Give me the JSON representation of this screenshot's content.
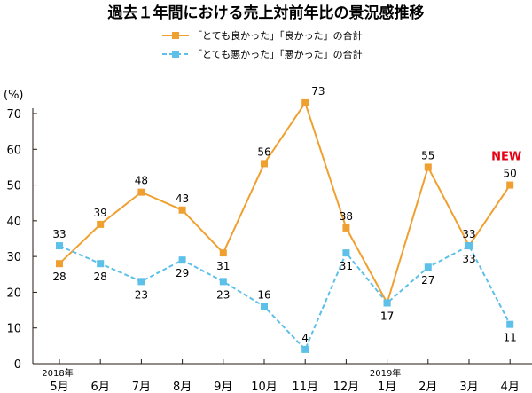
{
  "chart_data": {
    "type": "line",
    "title": "過去１年間における売上対前年比の景況感推移",
    "ylabel": "(%)",
    "ylim": [
      0,
      70
    ],
    "yticks": [
      0,
      10,
      20,
      30,
      40,
      50,
      60,
      70
    ],
    "grid": false,
    "legend_position": "top-center",
    "categories": [
      "5月",
      "6月",
      "7月",
      "8月",
      "9月",
      "10月",
      "11月",
      "12月",
      "1月",
      "2月",
      "3月",
      "4月"
    ],
    "year_labels": [
      {
        "category_index": 0,
        "text": "2018年"
      },
      {
        "category_index": 8,
        "text": "2019年"
      }
    ],
    "series": [
      {
        "name": "「とても良かった」「良かった」の合計",
        "values": [
          28,
          39,
          48,
          43,
          31,
          56,
          73,
          38,
          17,
          55,
          33,
          50
        ],
        "color": "#F0A030",
        "dash": "solid",
        "label_side": [
          "below",
          "above",
          "above",
          "above",
          "below",
          "above",
          "right",
          "above",
          "below",
          "above",
          "below",
          "above"
        ]
      },
      {
        "name": "「とても悪かった」「悪かった」の合計",
        "values": [
          33,
          28,
          23,
          29,
          23,
          16,
          4,
          31,
          17,
          27,
          33,
          11
        ],
        "color": "#5CC0E8",
        "dash": "dashed",
        "label_side": [
          "above",
          "below",
          "below",
          "below",
          "below",
          "above",
          "above",
          "below",
          "below",
          "below",
          "above",
          "below"
        ]
      }
    ],
    "annotations": [
      {
        "text": "NEW",
        "category_index": 11,
        "color": "#E60012"
      }
    ]
  }
}
